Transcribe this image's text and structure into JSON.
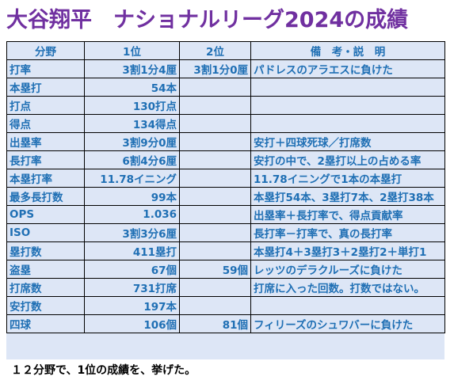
{
  "title": "大谷翔平　ナショナルリーグ2024の成績",
  "headers": {
    "category": "分野",
    "first": "1位",
    "second": "2位",
    "remarks": "備　考・説　明"
  },
  "rows": [
    {
      "category": "打率",
      "first": "3割1分4厘",
      "second": "3割1分0厘",
      "remarks": "パドレスのアラエスに負けた",
      "red": true
    },
    {
      "category": "本塁打",
      "first": "54本",
      "second": "",
      "remarks": ""
    },
    {
      "category": "打点",
      "first": "130打点",
      "second": "",
      "remarks": ""
    },
    {
      "category": "得点",
      "first": "134得点",
      "second": "",
      "remarks": ""
    },
    {
      "category": "出塁率",
      "first": "3割9分0厘",
      "second": "",
      "remarks": "安打＋四球死球／打席数"
    },
    {
      "category": "長打率",
      "first": "6割4分6厘",
      "second": "",
      "remarks": "安打の中で、2塁打以上の占める率"
    },
    {
      "category": "本塁打率",
      "first": "11.78イニング",
      "second": "",
      "remarks": "11.78イニングで1本の本塁打"
    },
    {
      "category": "最多長打数",
      "first": "99本",
      "second": "",
      "remarks": "本塁打54本、3塁打7本、2塁打38本"
    },
    {
      "category": "OPS",
      "first": "1.036",
      "second": "",
      "remarks": "出塁率＋長打率で、得点貢献率"
    },
    {
      "category": "ISO",
      "first": "3割3分6厘",
      "second": "",
      "remarks": "長打率－打率で、真の長打率"
    },
    {
      "category": "塁打数",
      "first": "411塁打",
      "second": "",
      "remarks": "本塁打4＋3塁打3＋2塁打2＋単打1"
    },
    {
      "category": "盗塁",
      "first": "67個",
      "second": "59個",
      "remarks": "レッツのデラクルーズに負けた",
      "red": true
    },
    {
      "category": "打席数",
      "first": "731打席",
      "second": "",
      "remarks": "打席に入った回数。打数ではない。"
    },
    {
      "category": "安打数",
      "first": "197本",
      "second": "",
      "remarks": ""
    },
    {
      "category": "四球",
      "first": "106個",
      "second": "81個",
      "remarks": "フィリーズのシュワバーに負けた",
      "red": true
    }
  ],
  "footer": "１２分野で、1位の成績を、挙げた。",
  "colors": {
    "title": "#7030a0",
    "text": "#1f6fb4",
    "loss": "#e03030",
    "cell_background": "#dde6f6"
  }
}
